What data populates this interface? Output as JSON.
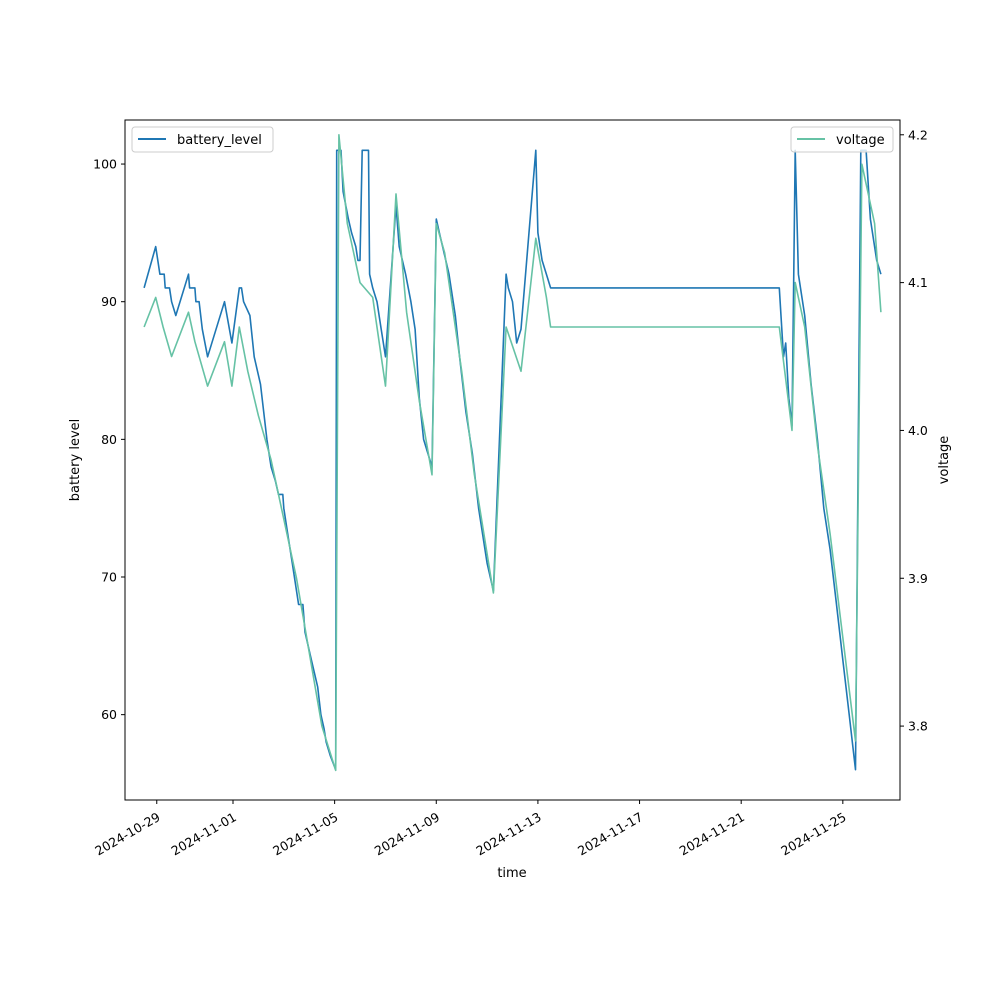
{
  "chart_data": {
    "type": "line",
    "title": "",
    "xlabel": "time",
    "ylabel_left": "battery level",
    "ylabel_right": "voltage",
    "x_ticks": [
      "2024-10-29",
      "2024-11-01",
      "2024-11-05",
      "2024-11-09",
      "2024-11-13",
      "2024-11-17",
      "2024-11-21",
      "2024-11-25"
    ],
    "y_left_ticks": [
      "60",
      "70",
      "80",
      "90",
      "100"
    ],
    "y_right_ticks": [
      "3.8",
      "3.9",
      "4.0",
      "4.1",
      "4.2"
    ],
    "xlim": [
      "2024-10-27T18:00",
      "2024-11-27T06:00"
    ],
    "ylim_left": [
      53.8,
      103.2
    ],
    "ylim_right": [
      3.75,
      4.21
    ],
    "legend_left": {
      "position": "upper left",
      "label": "battery_level"
    },
    "legend_right": {
      "position": "upper right",
      "label": "voltage"
    },
    "colors": {
      "battery_level": "#1f77b4",
      "voltage": "#66c2a5"
    },
    "series": [
      {
        "name": "battery_level",
        "axis": "left",
        "points": [
          [
            "2024-10-28T12:00",
            91
          ],
          [
            "2024-10-28T23:00",
            94
          ],
          [
            "2024-10-29T01:00",
            93
          ],
          [
            "2024-10-29T03:00",
            92
          ],
          [
            "2024-10-29T07:00",
            92
          ],
          [
            "2024-10-29T08:00",
            91
          ],
          [
            "2024-10-29T12:00",
            91
          ],
          [
            "2024-10-29T14:00",
            90
          ],
          [
            "2024-10-29T18:00",
            89
          ],
          [
            "2024-10-30T06:00",
            92
          ],
          [
            "2024-10-30T07:00",
            91
          ],
          [
            "2024-10-30T12:00",
            91
          ],
          [
            "2024-10-30T13:00",
            90
          ],
          [
            "2024-10-30T16:00",
            90
          ],
          [
            "2024-10-30T19:00",
            88
          ],
          [
            "2024-10-31T00:00",
            86
          ],
          [
            "2024-10-31T16:00",
            90
          ],
          [
            "2024-10-31T23:00",
            87
          ],
          [
            "2024-11-01T06:00",
            91
          ],
          [
            "2024-11-01T08:00",
            91
          ],
          [
            "2024-11-01T10:00",
            90
          ],
          [
            "2024-11-01T16:00",
            89
          ],
          [
            "2024-11-01T20:00",
            86
          ],
          [
            "2024-11-02T02:00",
            84
          ],
          [
            "2024-11-02T08:00",
            80
          ],
          [
            "2024-11-02T12:00",
            78
          ],
          [
            "2024-11-02T16:00",
            77
          ],
          [
            "2024-11-02T19:00",
            76
          ],
          [
            "2024-11-02T23:00",
            76
          ],
          [
            "2024-11-03T00:00",
            75
          ],
          [
            "2024-11-03T04:00",
            73
          ],
          [
            "2024-11-03T08:00",
            71
          ],
          [
            "2024-11-03T12:00",
            69
          ],
          [
            "2024-11-03T14:00",
            68
          ],
          [
            "2024-11-03T18:00",
            68
          ],
          [
            "2024-11-03T20:00",
            66
          ],
          [
            "2024-11-04T02:00",
            64
          ],
          [
            "2024-11-04T08:00",
            62
          ],
          [
            "2024-11-04T11:00",
            60
          ],
          [
            "2024-11-04T14:00",
            59
          ],
          [
            "2024-11-04T16:00",
            58
          ],
          [
            "2024-11-04T20:00",
            57
          ],
          [
            "2024-11-05T01:00",
            56
          ],
          [
            "2024-11-05T02:00",
            101
          ],
          [
            "2024-11-05T06:00",
            101
          ],
          [
            "2024-11-05T08:00",
            98
          ],
          [
            "2024-11-05T13:00",
            96
          ],
          [
            "2024-11-05T16:00",
            95
          ],
          [
            "2024-11-05T20:00",
            94
          ],
          [
            "2024-11-05T22:00",
            93
          ],
          [
            "2024-11-06T00:00",
            93
          ],
          [
            "2024-11-06T02:00",
            101
          ],
          [
            "2024-11-06T08:00",
            101
          ],
          [
            "2024-11-06T09:00",
            92
          ],
          [
            "2024-11-06T12:00",
            91
          ],
          [
            "2024-11-06T16:00",
            90
          ],
          [
            "2024-11-06T20:00",
            88
          ],
          [
            "2024-11-07T00:00",
            86
          ],
          [
            "2024-11-07T10:00",
            97
          ],
          [
            "2024-11-07T13:00",
            94
          ],
          [
            "2024-11-07T16:00",
            93
          ],
          [
            "2024-11-07T19:00",
            92
          ],
          [
            "2024-11-08T00:00",
            90
          ],
          [
            "2024-11-08T04:00",
            88
          ],
          [
            "2024-11-08T08:00",
            83
          ],
          [
            "2024-11-08T12:00",
            80
          ],
          [
            "2024-11-08T16:00",
            79
          ],
          [
            "2024-11-08T20:00",
            78
          ],
          [
            "2024-11-09T00:00",
            96
          ],
          [
            "2024-11-09T03:00",
            95
          ],
          [
            "2024-11-09T06:00",
            94
          ],
          [
            "2024-11-09T12:00",
            92
          ],
          [
            "2024-11-09T18:00",
            89
          ],
          [
            "2024-11-09T22:00",
            86
          ],
          [
            "2024-11-10T04:00",
            82
          ],
          [
            "2024-11-10T10:00",
            79
          ],
          [
            "2024-11-10T16:00",
            75
          ],
          [
            "2024-11-11T00:00",
            71
          ],
          [
            "2024-11-11T06:00",
            69
          ],
          [
            "2024-11-11T18:00",
            92
          ],
          [
            "2024-11-11T20:00",
            91
          ],
          [
            "2024-11-12T00:00",
            90
          ],
          [
            "2024-11-12T04:00",
            87
          ],
          [
            "2024-11-12T08:00",
            88
          ],
          [
            "2024-11-12T22:00",
            101
          ],
          [
            "2024-11-13T00:00",
            95
          ],
          [
            "2024-11-13T04:00",
            93
          ],
          [
            "2024-11-13T08:00",
            92
          ],
          [
            "2024-11-13T12:00",
            91
          ],
          [
            "2024-11-22T12:00",
            91
          ],
          [
            "2024-11-22T16:00",
            86
          ],
          [
            "2024-11-22T18:00",
            87
          ],
          [
            "2024-11-22T21:00",
            83
          ],
          [
            "2024-11-23T00:00",
            81
          ],
          [
            "2024-11-23T03:00",
            101
          ],
          [
            "2024-11-23T06:00",
            92
          ],
          [
            "2024-11-23T12:00",
            89
          ],
          [
            "2024-11-23T18:00",
            84
          ],
          [
            "2024-11-24T00:00",
            80
          ],
          [
            "2024-11-24T06:00",
            75
          ],
          [
            "2024-11-24T12:00",
            72
          ],
          [
            "2024-11-24T18:00",
            68
          ],
          [
            "2024-11-25T00:00",
            64
          ],
          [
            "2024-11-25T06:00",
            60
          ],
          [
            "2024-11-25T12:00",
            56
          ],
          [
            "2024-11-25T17:00",
            101
          ],
          [
            "2024-11-25T22:00",
            101
          ],
          [
            "2024-11-26T02:00",
            96
          ],
          [
            "2024-11-26T08:00",
            93
          ],
          [
            "2024-11-26T12:00",
            92
          ]
        ]
      },
      {
        "name": "voltage",
        "axis": "right",
        "points": [
          [
            "2024-10-28T12:00",
            4.07
          ],
          [
            "2024-10-28T23:00",
            4.09
          ],
          [
            "2024-10-29T06:00",
            4.07
          ],
          [
            "2024-10-29T14:00",
            4.05
          ],
          [
            "2024-10-30T06:00",
            4.08
          ],
          [
            "2024-10-30T12:00",
            4.06
          ],
          [
            "2024-10-31T00:00",
            4.03
          ],
          [
            "2024-10-31T16:00",
            4.06
          ],
          [
            "2024-10-31T23:00",
            4.03
          ],
          [
            "2024-11-01T06:00",
            4.07
          ],
          [
            "2024-11-01T14:00",
            4.04
          ],
          [
            "2024-11-02T00:00",
            4.01
          ],
          [
            "2024-11-02T12:00",
            3.98
          ],
          [
            "2024-11-03T00:00",
            3.94
          ],
          [
            "2024-11-03T12:00",
            3.9
          ],
          [
            "2024-11-04T00:00",
            3.85
          ],
          [
            "2024-11-04T12:00",
            3.8
          ],
          [
            "2024-11-05T01:00",
            3.77
          ],
          [
            "2024-11-05T04:00",
            4.2
          ],
          [
            "2024-11-05T12:00",
            4.14
          ],
          [
            "2024-11-05T18:00",
            4.12
          ],
          [
            "2024-11-06T00:00",
            4.1
          ],
          [
            "2024-11-06T12:00",
            4.09
          ],
          [
            "2024-11-07T00:00",
            4.03
          ],
          [
            "2024-11-07T10:00",
            4.16
          ],
          [
            "2024-11-07T20:00",
            4.08
          ],
          [
            "2024-11-08T08:00",
            4.02
          ],
          [
            "2024-11-08T20:00",
            3.97
          ],
          [
            "2024-11-09T00:00",
            4.14
          ],
          [
            "2024-11-09T08:00",
            4.12
          ],
          [
            "2024-11-10T00:00",
            4.04
          ],
          [
            "2024-11-10T12:00",
            3.97
          ],
          [
            "2024-11-11T06:00",
            3.89
          ],
          [
            "2024-11-11T18:00",
            4.07
          ],
          [
            "2024-11-12T08:00",
            4.04
          ],
          [
            "2024-11-12T22:00",
            4.13
          ],
          [
            "2024-11-13T08:00",
            4.09
          ],
          [
            "2024-11-13T12:00",
            4.07
          ],
          [
            "2024-11-22T12:00",
            4.07
          ],
          [
            "2024-11-23T00:00",
            4.0
          ],
          [
            "2024-11-23T03:00",
            4.1
          ],
          [
            "2024-11-23T12:00",
            4.07
          ],
          [
            "2024-11-24T00:00",
            3.99
          ],
          [
            "2024-11-24T12:00",
            3.93
          ],
          [
            "2024-11-25T00:00",
            3.86
          ],
          [
            "2024-11-25T12:00",
            3.79
          ],
          [
            "2024-11-25T18:00",
            4.18
          ],
          [
            "2024-11-26T06:00",
            4.14
          ],
          [
            "2024-11-26T12:00",
            4.08
          ]
        ]
      }
    ]
  }
}
